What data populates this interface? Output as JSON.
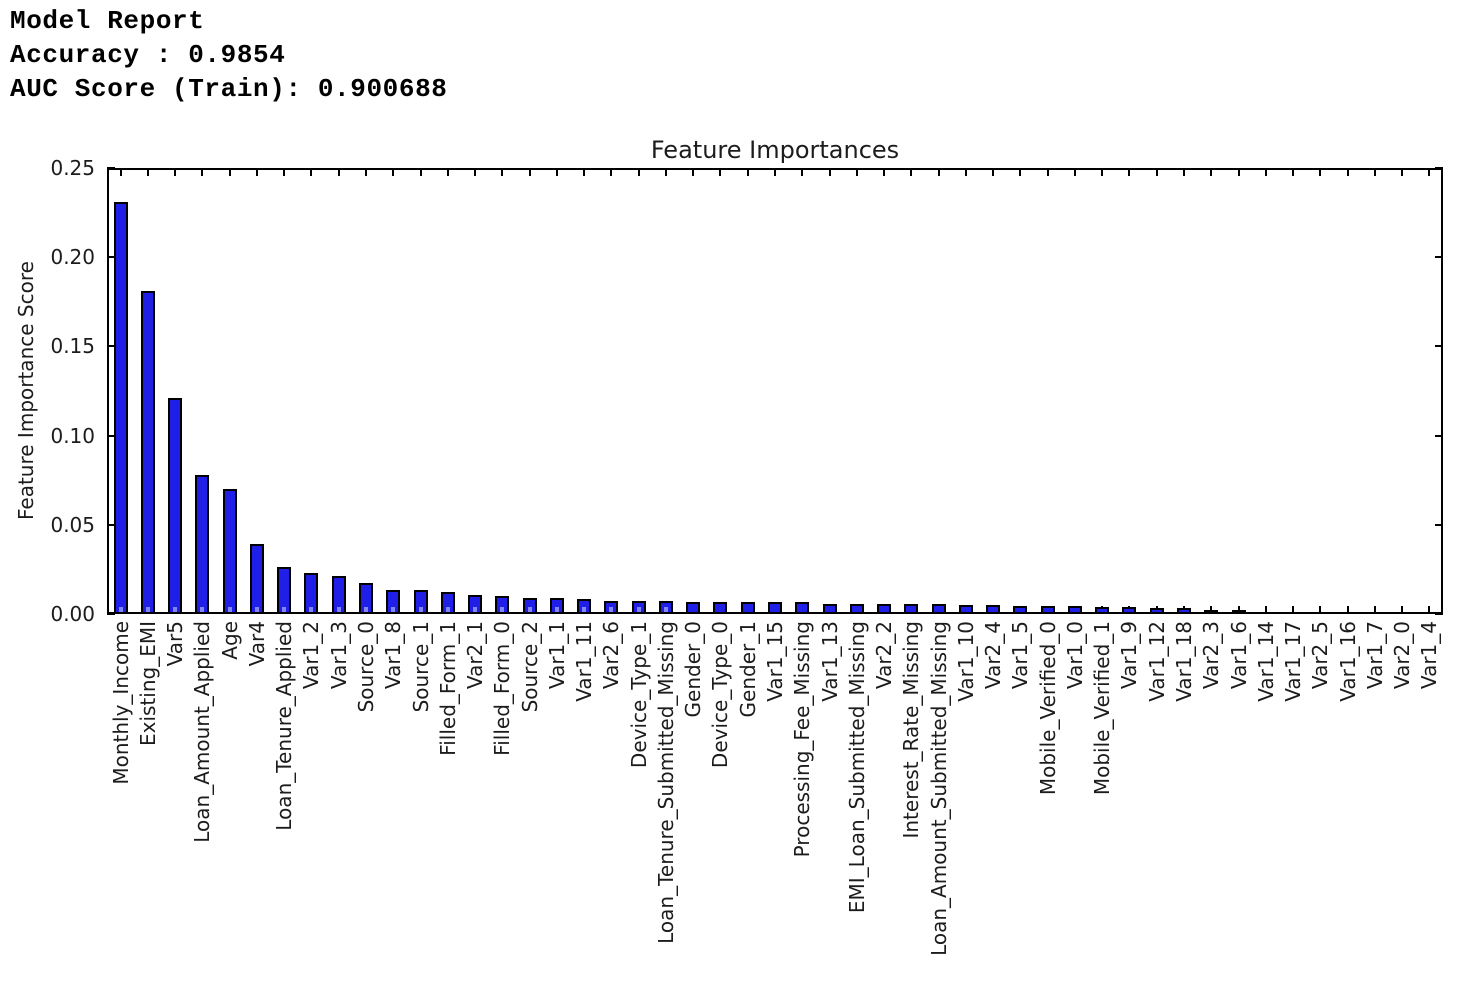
{
  "report": {
    "lines": [
      "Model Report",
      "Accuracy : 0.9854",
      "AUC Score (Train): 0.900688"
    ]
  },
  "chart_data": {
    "type": "bar",
    "title": "Feature Importances",
    "xlabel": "",
    "ylabel": "Feature Importance Score",
    "ylim": [
      0,
      0.25
    ],
    "yticks": [
      0.0,
      0.05,
      0.1,
      0.15,
      0.2,
      0.25
    ],
    "grid": false,
    "legend": "none",
    "bar_color": "#1f1fe8",
    "bar_edge_color": "#000000",
    "categories": [
      "Monthly_Income",
      "Existing_EMI",
      "Var5",
      "Loan_Amount_Applied",
      "Age",
      "Var4",
      "Loan_Tenure_Applied",
      "Var1_2",
      "Var1_3",
      "Source_0",
      "Var1_8",
      "Source_1",
      "Filled_Form_1",
      "Var2_1",
      "Filled_Form_0",
      "Source_2",
      "Var1_1",
      "Var1_11",
      "Var2_6",
      "Device_Type_1",
      "Loan_Tenure_Submitted_Missing",
      "Gender_0",
      "Device_Type_0",
      "Gender_1",
      "Var1_15",
      "Processing_Fee_Missing",
      "Var1_13",
      "EMI_Loan_Submitted_Missing",
      "Var2_2",
      "Interest_Rate_Missing",
      "Loan_Amount_Submitted_Missing",
      "Var1_10",
      "Var2_4",
      "Var1_5",
      "Mobile_Verified_0",
      "Var1_0",
      "Mobile_Verified_1",
      "Var1_9",
      "Var1_12",
      "Var1_18",
      "Var2_3",
      "Var1_6",
      "Var1_14",
      "Var1_17",
      "Var2_5",
      "Var1_16",
      "Var1_7",
      "Var2_0",
      "Var1_4"
    ],
    "values": [
      0.23,
      0.18,
      0.12,
      0.077,
      0.069,
      0.038,
      0.025,
      0.022,
      0.02,
      0.0165,
      0.0125,
      0.0122,
      0.011,
      0.0095,
      0.009,
      0.008,
      0.0078,
      0.0075,
      0.0062,
      0.006,
      0.0059,
      0.0058,
      0.0058,
      0.0057,
      0.0056,
      0.0055,
      0.0046,
      0.0045,
      0.0044,
      0.0044,
      0.0043,
      0.0042,
      0.0041,
      0.0032,
      0.0031,
      0.0031,
      0.003,
      0.0026,
      0.0025,
      0.0025,
      0.0011,
      0.001,
      0.0004,
      0.0003,
      0.0003,
      0.0002,
      0.0002,
      0.0001,
      0.0001
    ]
  }
}
